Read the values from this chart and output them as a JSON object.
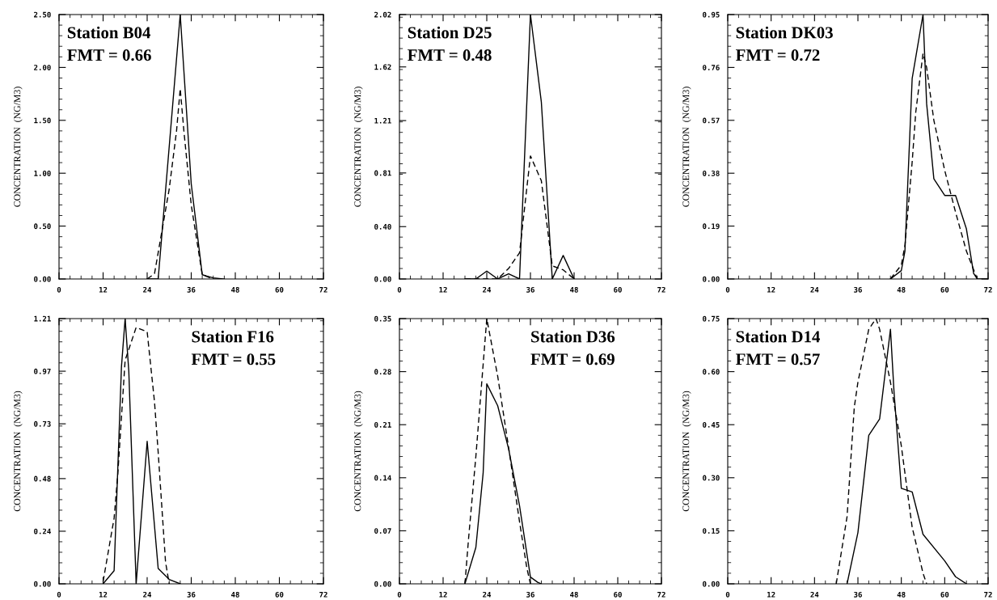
{
  "chart_data": [
    {
      "type": "line",
      "ylabel": "CONCENTRATION  (NG/M3)",
      "xlim": [
        0,
        72
      ],
      "ylim": [
        0,
        2.5
      ],
      "xticks": [
        0,
        12,
        24,
        36,
        48,
        60,
        72
      ],
      "yticks": [
        {
          "value": 0,
          "label": "0.00"
        },
        {
          "value": 0.5,
          "label": "0.50"
        },
        {
          "value": 1.0,
          "label": "1.00"
        },
        {
          "value": 1.5,
          "label": "1.50"
        },
        {
          "value": 2.0,
          "label": "2.00"
        },
        {
          "value": 2.5,
          "label": "2.50"
        }
      ],
      "annotations": [
        "Station B04",
        "FMT = 0.66"
      ],
      "series": [
        {
          "color": "#000000",
          "line_style": "solid",
          "x": [
            24,
            27,
            30,
            33,
            36,
            39,
            42,
            45
          ],
          "values": [
            0,
            0,
            1.25,
            2.5,
            0.9,
            0.04,
            0.01,
            0
          ]
        },
        {
          "color": "#000000",
          "line_style": "dashed",
          "x": [
            24,
            26,
            30,
            32,
            33,
            34,
            36,
            39,
            42
          ],
          "values": [
            0,
            0.05,
            0.85,
            1.4,
            1.8,
            1.4,
            0.7,
            0.04,
            0
          ]
        }
      ]
    },
    {
      "type": "line",
      "ylabel": "CONCENTRATION  (NG/M3)",
      "xlim": [
        0,
        72
      ],
      "ylim": [
        0,
        2.02
      ],
      "xticks": [
        0,
        12,
        24,
        36,
        48,
        60,
        72
      ],
      "yticks": [
        {
          "value": 0,
          "label": "0.00"
        },
        {
          "value": 0.4,
          "label": "0.40"
        },
        {
          "value": 0.81,
          "label": "0.81"
        },
        {
          "value": 1.21,
          "label": "1.21"
        },
        {
          "value": 1.62,
          "label": "1.62"
        },
        {
          "value": 2.02,
          "label": "2.02"
        }
      ],
      "annotations": [
        "Station D25",
        "FMT = 0.48"
      ],
      "series": [
        {
          "color": "#000000",
          "line_style": "solid",
          "x": [
            18,
            21,
            24,
            27,
            30,
            33,
            36,
            39,
            42,
            45,
            48
          ],
          "values": [
            0,
            0,
            0.06,
            0,
            0.04,
            0,
            2.02,
            1.35,
            0,
            0.18,
            0
          ]
        },
        {
          "color": "#000000",
          "line_style": "dashed",
          "x": [
            18,
            21,
            24,
            27,
            30,
            33,
            36,
            39,
            42,
            45,
            48
          ],
          "values": [
            0,
            0,
            0,
            0,
            0.08,
            0.2,
            0.94,
            0.75,
            0.1,
            0.07,
            0
          ]
        }
      ]
    },
    {
      "type": "line",
      "ylabel": "CONCENTRATION  (NG/M3)",
      "xlim": [
        0,
        72
      ],
      "ylim": [
        0,
        0.95
      ],
      "xticks": [
        0,
        12,
        24,
        36,
        48,
        60,
        72
      ],
      "yticks": [
        {
          "value": 0,
          "label": "0.00"
        },
        {
          "value": 0.19,
          "label": "0.19"
        },
        {
          "value": 0.38,
          "label": "0.38"
        },
        {
          "value": 0.57,
          "label": "0.57"
        },
        {
          "value": 0.76,
          "label": "0.76"
        },
        {
          "value": 0.95,
          "label": "0.95"
        }
      ],
      "annotations": [
        "Station DK03",
        "FMT = 0.72"
      ],
      "series": [
        {
          "color": "#000000",
          "line_style": "solid",
          "x": [
            45,
            48,
            49,
            51,
            54,
            55,
            57,
            60,
            63,
            66,
            68,
            69,
            72
          ],
          "values": [
            0,
            0.03,
            0.1,
            0.72,
            0.95,
            0.63,
            0.36,
            0.3,
            0.3,
            0.18,
            0.02,
            0,
            0
          ]
        },
        {
          "color": "#000000",
          "line_style": "dashed",
          "x": [
            45,
            48,
            49,
            51,
            52,
            54,
            55,
            57,
            60,
            63,
            66,
            69
          ],
          "values": [
            0,
            0.05,
            0.12,
            0.42,
            0.6,
            0.81,
            0.76,
            0.57,
            0.39,
            0.24,
            0.1,
            0
          ]
        }
      ]
    },
    {
      "type": "line",
      "ylabel": "CONCENTRATION  (NG/M3)",
      "xlim": [
        0,
        72
      ],
      "ylim": [
        0,
        1.21
      ],
      "xticks": [
        0,
        12,
        24,
        36,
        48,
        60,
        72
      ],
      "yticks": [
        {
          "value": 0,
          "label": "0.00"
        },
        {
          "value": 0.24,
          "label": "0.24"
        },
        {
          "value": 0.48,
          "label": "0.48"
        },
        {
          "value": 0.73,
          "label": "0.73"
        },
        {
          "value": 0.97,
          "label": "0.97"
        },
        {
          "value": 1.21,
          "label": "1.21"
        }
      ],
      "annotations": [
        "Station F16",
        "FMT = 0.55"
      ],
      "series": [
        {
          "color": "#000000",
          "line_style": "solid",
          "x": [
            12,
            15,
            17,
            18,
            19,
            21,
            24,
            27,
            30,
            33
          ],
          "values": [
            0,
            0.06,
            0.99,
            1.21,
            0.97,
            0,
            0.65,
            0.07,
            0.02,
            0
          ]
        },
        {
          "color": "#000000",
          "line_style": "dashed",
          "x": [
            12,
            15,
            16,
            18,
            21,
            24,
            26,
            27,
            29,
            30
          ],
          "values": [
            0.01,
            0.3,
            0.5,
            1.02,
            1.17,
            1.15,
            0.83,
            0.6,
            0.1,
            0
          ]
        }
      ]
    },
    {
      "type": "line",
      "ylabel": "CONCENTRATION  (NG/M3)",
      "xlim": [
        0,
        72
      ],
      "ylim": [
        0,
        0.35
      ],
      "xticks": [
        0,
        12,
        24,
        36,
        48,
        60,
        72
      ],
      "yticks": [
        {
          "value": 0,
          "label": "0.00"
        },
        {
          "value": 0.07,
          "label": "0.07"
        },
        {
          "value": 0.14,
          "label": "0.14"
        },
        {
          "value": 0.21,
          "label": "0.21"
        },
        {
          "value": 0.28,
          "label": "0.28"
        },
        {
          "value": 0.35,
          "label": "0.35"
        }
      ],
      "annotations": [
        "Station D36",
        "FMT = 0.69"
      ],
      "series": [
        {
          "color": "#000000",
          "line_style": "solid",
          "x": [
            18,
            21,
            23,
            24,
            27,
            30,
            33,
            36,
            38,
            39
          ],
          "values": [
            0,
            0.048,
            0.146,
            0.264,
            0.235,
            0.178,
            0.103,
            0.009,
            0.002,
            0
          ]
        },
        {
          "color": "#000000",
          "line_style": "dashed",
          "x": [
            18,
            19,
            21,
            24,
            27,
            30,
            33,
            35,
            36
          ],
          "values": [
            0,
            0.06,
            0.168,
            0.35,
            0.274,
            0.18,
            0.082,
            0.021,
            0
          ]
        }
      ]
    },
    {
      "type": "line",
      "ylabel": "CONCENTRATION  (NG/M3)",
      "xlim": [
        0,
        72
      ],
      "ylim": [
        0,
        0.75
      ],
      "xticks": [
        0,
        12,
        24,
        36,
        48,
        60,
        72
      ],
      "yticks": [
        {
          "value": 0,
          "label": "0.00"
        },
        {
          "value": 0.15,
          "label": "0.15"
        },
        {
          "value": 0.3,
          "label": "0.30"
        },
        {
          "value": 0.45,
          "label": "0.45"
        },
        {
          "value": 0.6,
          "label": "0.60"
        },
        {
          "value": 0.75,
          "label": "0.75"
        }
      ],
      "annotations": [
        "Station D14",
        "FMT = 0.57"
      ],
      "series": [
        {
          "color": "#000000",
          "line_style": "solid",
          "x": [
            33,
            36,
            39,
            42,
            45,
            46,
            48,
            51,
            54,
            60,
            63,
            66
          ],
          "values": [
            0,
            0.145,
            0.42,
            0.466,
            0.72,
            0.54,
            0.27,
            0.26,
            0.14,
            0.065,
            0.02,
            0
          ]
        },
        {
          "color": "#000000",
          "line_style": "dashed",
          "x": [
            30,
            33,
            35,
            36,
            39,
            41,
            42,
            45,
            48,
            51,
            54,
            55
          ],
          "values": [
            0,
            0.19,
            0.5,
            0.57,
            0.72,
            0.75,
            0.72,
            0.57,
            0.39,
            0.16,
            0.03,
            0
          ]
        }
      ]
    }
  ]
}
